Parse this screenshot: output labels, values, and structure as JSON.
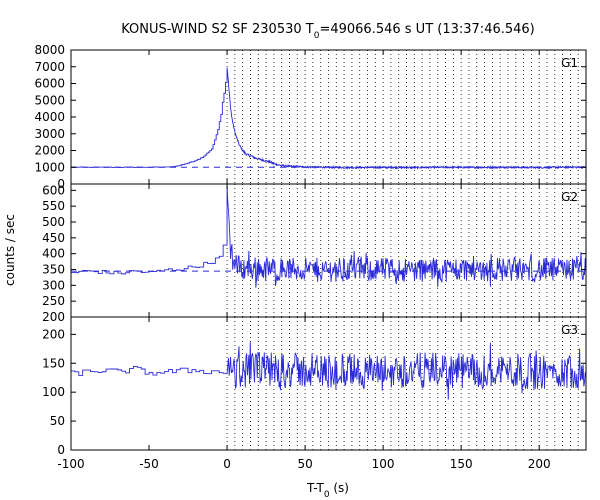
{
  "figure": {
    "title_prefix": "KONUS-WIND S2 SF 230530 T",
    "title_sub": "0",
    "title_suffix": "=49066.546 s UT (13:37:46.546)",
    "ylabel": "counts / sec",
    "xlabel_prefix": "T-T",
    "xlabel_sub": "0",
    "xlabel_suffix": " (s)"
  },
  "colors": {
    "data": "#2a2ad8",
    "axis": "#000000",
    "grid": "#000000",
    "background": "#ffffff"
  },
  "chart_data": [
    {
      "type": "line",
      "panel": "G1",
      "label": "G1",
      "xlim": [
        -100,
        230
      ],
      "ylim": [
        0,
        8000
      ],
      "yticks": [
        0,
        1000,
        2000,
        3000,
        4000,
        5000,
        6000,
        7000,
        8000
      ],
      "background_level": 1000,
      "series": [
        {
          "style": "histogram",
          "x": [
            -100,
            -90,
            -80,
            -70,
            -60,
            -50,
            -40,
            -35,
            -30,
            -25,
            -20,
            -15,
            -10,
            -8,
            -6,
            -4,
            -2,
            -1,
            0,
            0.5,
            1,
            1.5,
            2,
            3,
            4,
            5,
            6,
            8,
            10,
            12,
            14,
            16,
            18,
            20,
            22,
            25,
            28,
            30,
            35,
            40,
            50,
            60,
            80,
            100,
            120,
            140,
            160,
            180,
            200,
            220,
            230
          ],
          "y": [
            1000,
            1000,
            1000,
            1000,
            1000,
            1000,
            1010,
            1050,
            1120,
            1250,
            1400,
            1650,
            2100,
            2600,
            3300,
            4200,
            5500,
            6100,
            7000,
            6500,
            5900,
            5300,
            4800,
            4000,
            3500,
            3100,
            2800,
            2300,
            2000,
            1800,
            1700,
            1650,
            1550,
            1500,
            1450,
            1380,
            1300,
            1200,
            1100,
            1060,
            1020,
            1000,
            980,
            990,
            980,
            1000,
            990,
            1000,
            980,
            1010,
            1000
          ]
        }
      ]
    },
    {
      "type": "line",
      "panel": "G2",
      "label": "G2",
      "xlim": [
        -100,
        230
      ],
      "ylim": [
        200,
        620
      ],
      "yticks": [
        200,
        250,
        300,
        350,
        400,
        450,
        500,
        550,
        600
      ],
      "background_level": 345,
      "series": [
        {
          "style": "noisy",
          "x": [
            -100,
            -90,
            -80,
            -70,
            -60,
            -50,
            -40,
            -30,
            -20,
            -10,
            -5,
            -2,
            0,
            1,
            2,
            4,
            6,
            10,
            20,
            40,
            60,
            80,
            100,
            120,
            140,
            160,
            180,
            200,
            220,
            230
          ],
          "y": [
            340,
            345,
            342,
            338,
            345,
            340,
            348,
            352,
            360,
            375,
            390,
            430,
            600,
            520,
            420,
            380,
            360,
            355,
            352,
            350,
            348,
            352,
            350,
            348,
            350,
            352,
            350,
            348,
            350,
            350
          ]
        }
      ]
    },
    {
      "type": "line",
      "panel": "G3",
      "label": "G3",
      "xlim": [
        -100,
        230
      ],
      "ylim": [
        0,
        230
      ],
      "yticks": [
        0,
        50,
        100,
        150,
        200
      ],
      "series": [
        {
          "style": "noisy",
          "x": [
            -100,
            -90,
            -80,
            -70,
            -60,
            -50,
            -40,
            -30,
            -20,
            -10,
            0,
            20,
            40,
            60,
            80,
            100,
            120,
            140,
            160,
            180,
            200,
            220,
            230
          ],
          "y": [
            132,
            135,
            138,
            135,
            140,
            133,
            135,
            137,
            138,
            135,
            135,
            140,
            138,
            136,
            137,
            135,
            138,
            137,
            136,
            138,
            135,
            137,
            136
          ]
        }
      ]
    }
  ],
  "xticks": [
    -100,
    -50,
    0,
    50,
    100,
    150,
    200
  ],
  "vlines": [
    0,
    5,
    10,
    15,
    20,
    25,
    30,
    35,
    40,
    45,
    50,
    55,
    60,
    65,
    70,
    75,
    80,
    85,
    90,
    95,
    100,
    105,
    110,
    115,
    120,
    125,
    130,
    135,
    140,
    145,
    150,
    155,
    160,
    165,
    170,
    175,
    180,
    185,
    190,
    195,
    200,
    205,
    210,
    215,
    220,
    225
  ]
}
